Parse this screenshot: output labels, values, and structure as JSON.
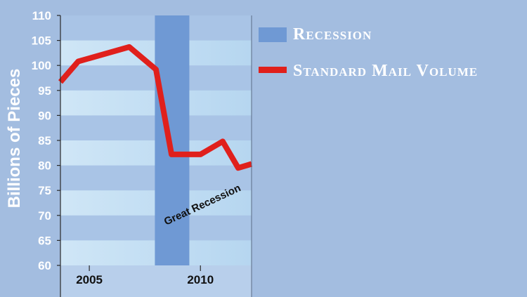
{
  "chart_data": {
    "type": "line",
    "ylabel": "Billions of Pieces",
    "xlabel": "",
    "ylim": [
      60,
      110
    ],
    "xlim": [
      2003.7,
      2012.3
    ],
    "y_ticks": [
      "110",
      "105",
      "100",
      "95",
      "90",
      "85",
      "80",
      "75",
      "70",
      "65",
      "60"
    ],
    "x_ticks": [
      {
        "label": "2005",
        "value": 2005
      },
      {
        "label": "2010",
        "value": 2010
      }
    ],
    "grid": "alternating horizontal bands",
    "legend_position": "right",
    "series": [
      {
        "name": "Standard Mail Volume",
        "color": "#e0201c",
        "points": [
          {
            "x": 2003.7,
            "y": 96.7
          },
          {
            "x": 2004.5,
            "y": 100.8
          },
          {
            "x": 2006.8,
            "y": 103.7
          },
          {
            "x": 2008.0,
            "y": 99.2
          },
          {
            "x": 2008.7,
            "y": 82.2
          },
          {
            "x": 2010.0,
            "y": 82.2
          },
          {
            "x": 2011.0,
            "y": 84.8
          },
          {
            "x": 2011.7,
            "y": 79.5
          },
          {
            "x": 2012.3,
            "y": 80.3
          }
        ]
      }
    ],
    "recessions": [
      {
        "name": "Recession",
        "color": "#6f99d4",
        "start": 2007.95,
        "end": 2009.5
      }
    ],
    "annotations": [
      {
        "text": "Great Recession"
      }
    ],
    "colors": {
      "background": "#a3bde0",
      "band_light": "#c6e0f3",
      "band_dark": "#a9c4e6",
      "recession": "#6f99d4",
      "line": "#e0201c"
    }
  }
}
